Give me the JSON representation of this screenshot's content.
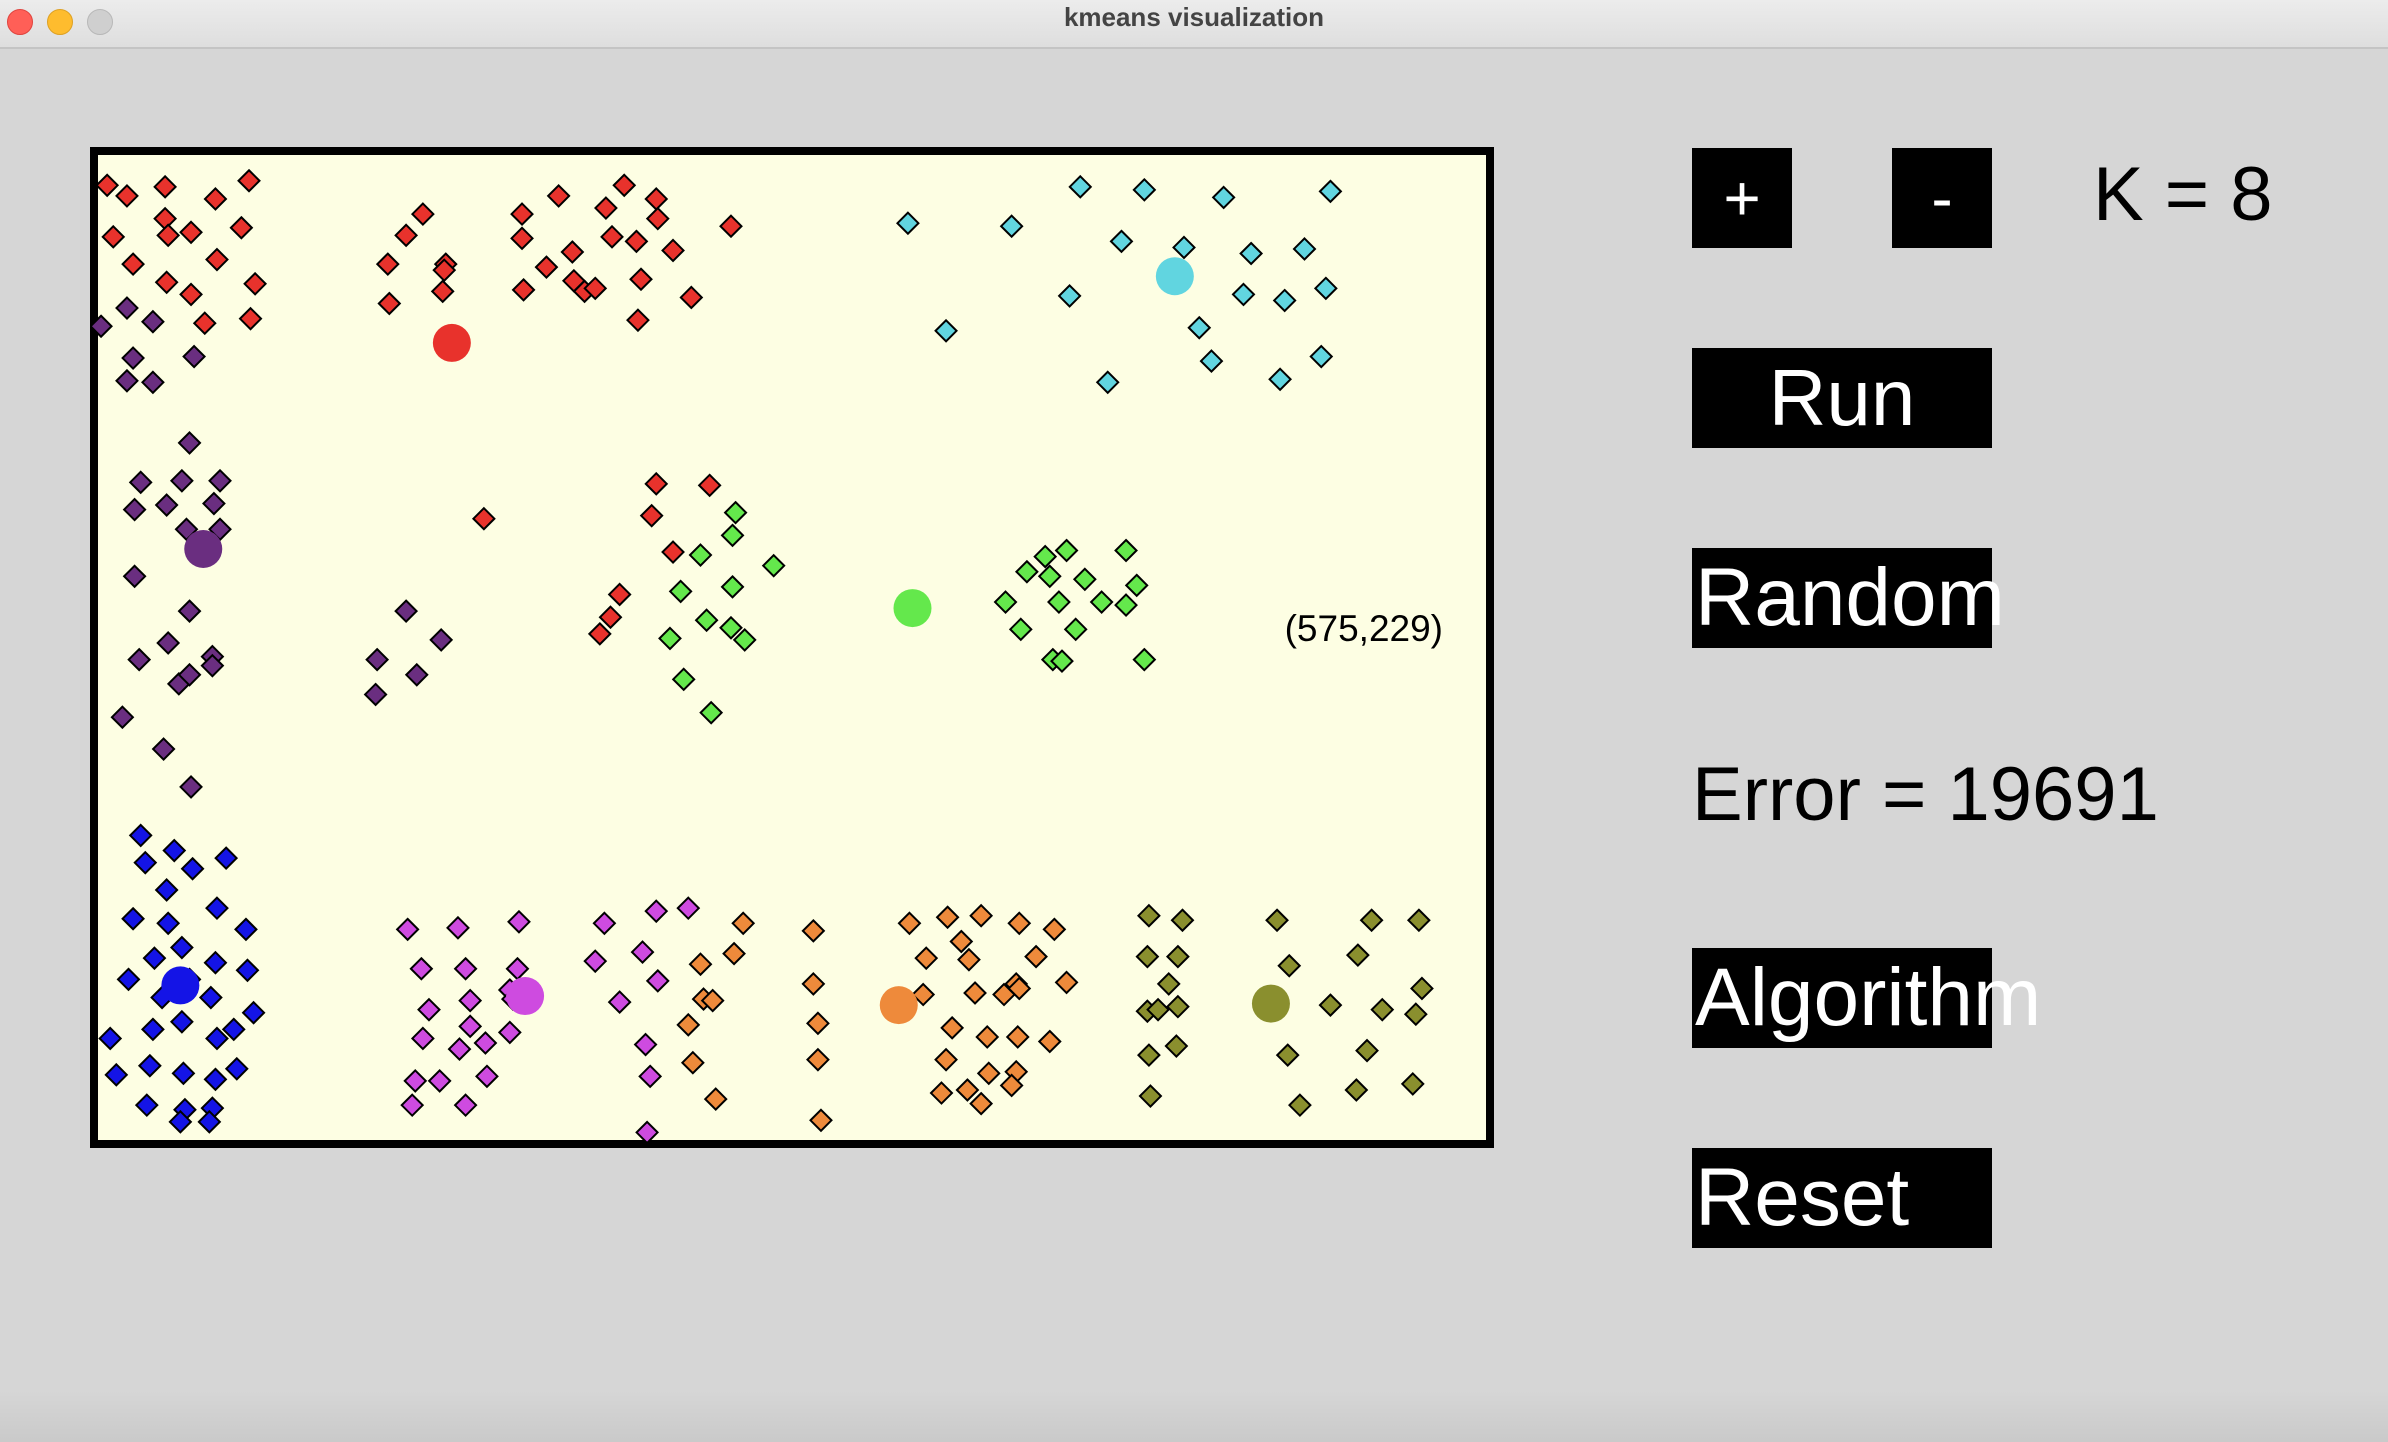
{
  "window": {
    "title": "kmeans visualization"
  },
  "controls": {
    "plus_label": "+",
    "minus_label": "-",
    "k_text": "K = 8",
    "run_label": "Run",
    "random_label": "Random",
    "error_text": "Error = 19691",
    "algorithm_label": "Algorithm",
    "reset_label": "Reset"
  },
  "chart_data": {
    "type": "scatter",
    "xlim": [
      0,
      910
    ],
    "ylim": [
      0,
      650
    ],
    "y_inverted": true,
    "cursor_readout": "(575,229)",
    "clusters": [
      {
        "color": "#e8322c",
        "centroid": [
          232,
          124
        ],
        "points": [
          [
            6,
            20
          ],
          [
            19,
            27
          ],
          [
            44,
            21
          ],
          [
            99,
            17
          ],
          [
            77,
            29
          ],
          [
            10,
            54
          ],
          [
            44,
            42
          ],
          [
            46,
            53
          ],
          [
            61,
            51
          ],
          [
            94,
            48
          ],
          [
            45,
            84
          ],
          [
            23,
            72
          ],
          [
            78,
            69
          ],
          [
            61,
            92
          ],
          [
            103,
            85
          ],
          [
            70,
            111
          ],
          [
            100,
            108
          ],
          [
            278,
            39
          ],
          [
            302,
            27
          ],
          [
            333,
            35
          ],
          [
            345,
            20
          ],
          [
            366,
            29
          ],
          [
            367,
            42
          ],
          [
            337,
            54
          ],
          [
            353,
            57
          ],
          [
            415,
            47
          ],
          [
            278,
            55
          ],
          [
            311,
            64
          ],
          [
            294,
            74
          ],
          [
            279,
            89
          ],
          [
            312,
            83
          ],
          [
            319,
            90
          ],
          [
            326,
            88
          ],
          [
            356,
            82
          ],
          [
            377,
            63
          ],
          [
            389,
            94
          ],
          [
            354,
            109
          ],
          [
            213,
            39
          ],
          [
            202,
            53
          ],
          [
            228,
            72
          ],
          [
            190,
            72
          ],
          [
            227,
            76
          ],
          [
            226,
            90
          ],
          [
            191,
            98
          ],
          [
            253,
            240
          ],
          [
            366,
            217
          ],
          [
            401,
            218
          ],
          [
            363,
            238
          ],
          [
            377,
            262
          ],
          [
            342,
            290
          ],
          [
            336,
            305
          ],
          [
            329,
            316
          ]
        ]
      },
      {
        "color": "#61d5e0",
        "centroid": [
          706,
          80
        ],
        "points": [
          [
            531,
            45
          ],
          [
            599,
            47
          ],
          [
            644,
            21
          ],
          [
            686,
            23
          ],
          [
            738,
            28
          ],
          [
            808,
            24
          ],
          [
            671,
            57
          ],
          [
            712,
            61
          ],
          [
            756,
            65
          ],
          [
            791,
            62
          ],
          [
            637,
            93
          ],
          [
            751,
            92
          ],
          [
            778,
            96
          ],
          [
            805,
            88
          ],
          [
            556,
            116
          ],
          [
            722,
            114
          ],
          [
            730,
            136
          ],
          [
            662,
            150
          ],
          [
            775,
            148
          ],
          [
            802,
            133
          ]
        ]
      },
      {
        "color": "#6a2e80",
        "centroid": [
          69,
          260
        ],
        "points": [
          [
            2,
            113
          ],
          [
            19,
            101
          ],
          [
            36,
            110
          ],
          [
            23,
            134
          ],
          [
            63,
            133
          ],
          [
            19,
            149
          ],
          [
            36,
            150
          ],
          [
            60,
            190
          ],
          [
            28,
            216
          ],
          [
            55,
            215
          ],
          [
            80,
            215
          ],
          [
            24,
            234
          ],
          [
            58,
            247
          ],
          [
            76,
            230
          ],
          [
            45,
            231
          ],
          [
            80,
            247
          ],
          [
            24,
            278
          ],
          [
            60,
            301
          ],
          [
            75,
            331
          ],
          [
            27,
            333
          ],
          [
            75,
            337
          ],
          [
            53,
            349
          ],
          [
            60,
            343
          ],
          [
            46,
            322
          ],
          [
            16,
            371
          ],
          [
            43,
            392
          ],
          [
            61,
            417
          ],
          [
            202,
            301
          ],
          [
            225,
            320
          ],
          [
            183,
            333
          ],
          [
            209,
            343
          ],
          [
            182,
            356
          ]
        ]
      },
      {
        "color": "#64e84c",
        "centroid": [
          534,
          299
        ],
        "points": [
          [
            418,
            236
          ],
          [
            416,
            251
          ],
          [
            395,
            264
          ],
          [
            382,
            288
          ],
          [
            416,
            285
          ],
          [
            399,
            307
          ],
          [
            424,
            320
          ],
          [
            415,
            312
          ],
          [
            443,
            271
          ],
          [
            375,
            319
          ],
          [
            384,
            346
          ],
          [
            402,
            368
          ],
          [
            609,
            275
          ],
          [
            621,
            265
          ],
          [
            635,
            261
          ],
          [
            674,
            261
          ],
          [
            624,
            278
          ],
          [
            647,
            280
          ],
          [
            595,
            295
          ],
          [
            605,
            313
          ],
          [
            630,
            295
          ],
          [
            658,
            295
          ],
          [
            641,
            313
          ],
          [
            681,
            284
          ],
          [
            674,
            297
          ],
          [
            626,
            333
          ],
          [
            632,
            334
          ],
          [
            686,
            333
          ]
        ]
      },
      {
        "color": "#ce4be0",
        "centroid": [
          280,
          555
        ],
        "points": [
          [
            203,
            511
          ],
          [
            236,
            510
          ],
          [
            276,
            506
          ],
          [
            212,
            537
          ],
          [
            241,
            537
          ],
          [
            275,
            537
          ],
          [
            217,
            564
          ],
          [
            244,
            558
          ],
          [
            270,
            551
          ],
          [
            272,
            557
          ],
          [
            244,
            575
          ],
          [
            213,
            583
          ],
          [
            237,
            590
          ],
          [
            254,
            586
          ],
          [
            270,
            579
          ],
          [
            208,
            611
          ],
          [
            224,
            611
          ],
          [
            255,
            608
          ],
          [
            206,
            627
          ],
          [
            241,
            627
          ],
          [
            332,
            507
          ],
          [
            366,
            499
          ],
          [
            387,
            497
          ],
          [
            326,
            532
          ],
          [
            357,
            526
          ],
          [
            367,
            545
          ],
          [
            342,
            559
          ],
          [
            359,
            587
          ],
          [
            362,
            608
          ],
          [
            360,
            645
          ]
        ]
      },
      {
        "color": "#ee8a3b",
        "centroid": [
          525,
          561
        ],
        "points": [
          [
            423,
            507
          ],
          [
            395,
            534
          ],
          [
            417,
            527
          ],
          [
            397,
            557
          ],
          [
            403,
            558
          ],
          [
            387,
            574
          ],
          [
            390,
            599
          ],
          [
            405,
            623
          ],
          [
            469,
            512
          ],
          [
            469,
            547
          ],
          [
            472,
            573
          ],
          [
            472,
            597
          ],
          [
            474,
            637
          ],
          [
            532,
            507
          ],
          [
            557,
            503
          ],
          [
            579,
            502
          ],
          [
            604,
            507
          ],
          [
            627,
            511
          ],
          [
            566,
            519
          ],
          [
            543,
            530
          ],
          [
            571,
            531
          ],
          [
            615,
            529
          ],
          [
            541,
            554
          ],
          [
            575,
            553
          ],
          [
            594,
            554
          ],
          [
            602,
            547
          ],
          [
            635,
            546
          ],
          [
            604,
            550
          ],
          [
            560,
            576
          ],
          [
            583,
            582
          ],
          [
            603,
            582
          ],
          [
            624,
            585
          ],
          [
            556,
            597
          ],
          [
            584,
            606
          ],
          [
            602,
            605
          ],
          [
            599,
            614
          ],
          [
            553,
            619
          ],
          [
            570,
            617
          ],
          [
            579,
            626
          ]
        ]
      },
      {
        "color": "#8a8f2e",
        "centroid": [
          769,
          560
        ],
        "points": [
          [
            689,
            502
          ],
          [
            711,
            505
          ],
          [
            688,
            529
          ],
          [
            708,
            529
          ],
          [
            702,
            547
          ],
          [
            688,
            565
          ],
          [
            695,
            564
          ],
          [
            708,
            562
          ],
          [
            689,
            594
          ],
          [
            707,
            588
          ],
          [
            690,
            621
          ],
          [
            773,
            505
          ],
          [
            835,
            505
          ],
          [
            866,
            505
          ],
          [
            781,
            535
          ],
          [
            826,
            528
          ],
          [
            808,
            561
          ],
          [
            842,
            564
          ],
          [
            864,
            567
          ],
          [
            868,
            550
          ],
          [
            780,
            594
          ],
          [
            832,
            591
          ],
          [
            862,
            613
          ],
          [
            825,
            617
          ],
          [
            788,
            627
          ]
        ]
      },
      {
        "color": "#1414e6",
        "centroid": [
          54,
          548
        ],
        "points": [
          [
            28,
            449
          ],
          [
            50,
            459
          ],
          [
            62,
            471
          ],
          [
            84,
            464
          ],
          [
            31,
            467
          ],
          [
            45,
            485
          ],
          [
            78,
            497
          ],
          [
            23,
            504
          ],
          [
            46,
            507
          ],
          [
            97,
            511
          ],
          [
            37,
            530
          ],
          [
            55,
            523
          ],
          [
            77,
            533
          ],
          [
            98,
            538
          ],
          [
            20,
            544
          ],
          [
            42,
            556
          ],
          [
            60,
            544
          ],
          [
            74,
            556
          ],
          [
            102,
            566
          ],
          [
            55,
            572
          ],
          [
            36,
            577
          ],
          [
            8,
            583
          ],
          [
            78,
            583
          ],
          [
            89,
            577
          ],
          [
            34,
            601
          ],
          [
            56,
            606
          ],
          [
            77,
            610
          ],
          [
            91,
            603
          ],
          [
            12,
            607
          ],
          [
            32,
            627
          ],
          [
            57,
            630
          ],
          [
            75,
            629
          ],
          [
            73,
            638
          ],
          [
            54,
            638
          ]
        ]
      }
    ]
  }
}
